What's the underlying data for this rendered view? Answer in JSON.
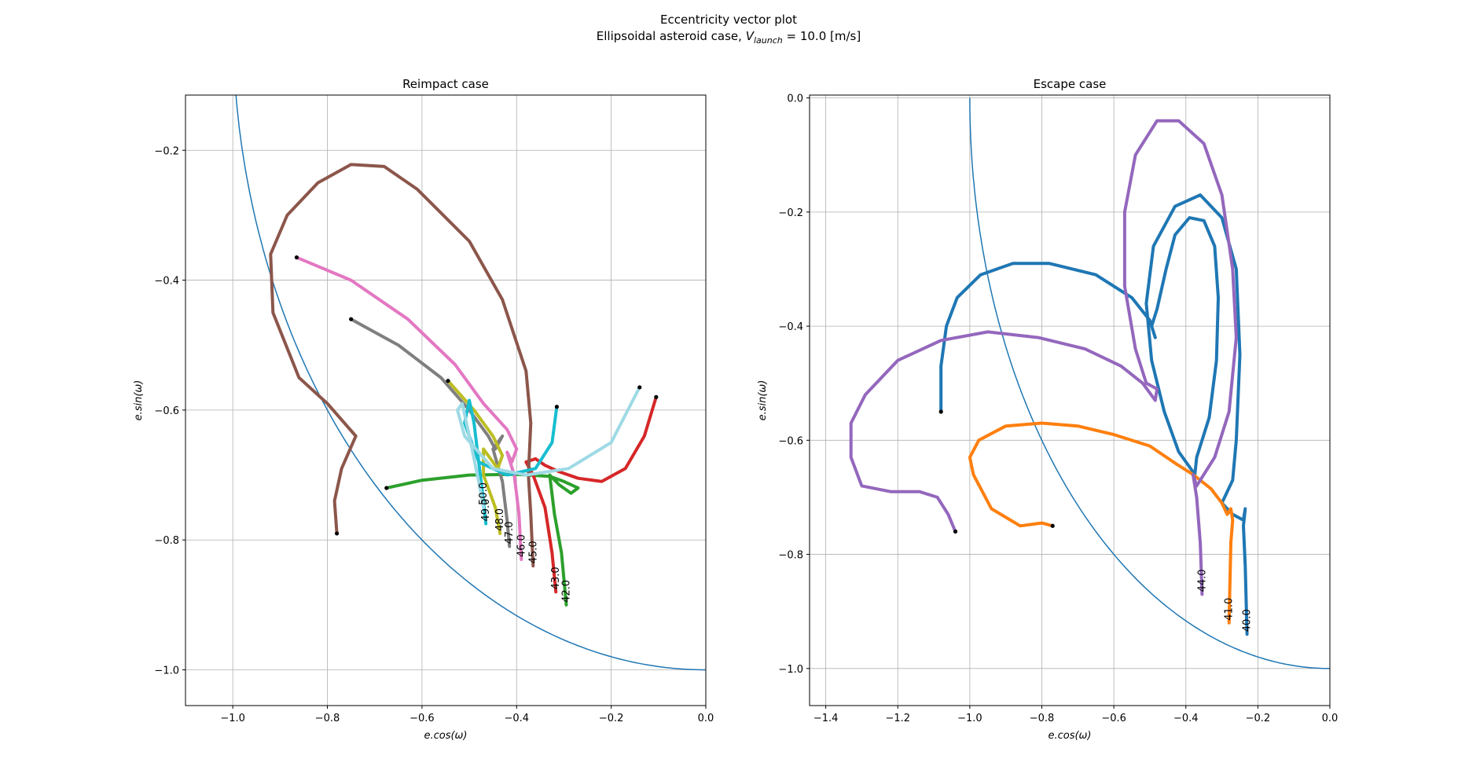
{
  "figure": {
    "title_line1": "Eccentricity vector plot",
    "title_line2_prefix": "Ellipsoidal asteroid case, ",
    "title_line2_var": "V",
    "title_line2_sub": "launch",
    "title_line2_suffix": " = 10.0 [m/s]"
  },
  "chart_data": [
    {
      "type": "line",
      "title": "Reimpact case",
      "xlabel": "e.cos(ω)",
      "ylabel": "e.sin(ω)",
      "xlim": [
        -1.1,
        0.0
      ],
      "ylim": [
        -1.055,
        -0.115
      ],
      "xticks": [
        -1.0,
        -0.8,
        -0.6,
        -0.4,
        -0.2,
        0.0
      ],
      "xtick_labels": [
        "−1.0",
        "−0.8",
        "−0.6",
        "−0.4",
        "−0.2",
        "0.0"
      ],
      "yticks": [
        -1.0,
        -0.8,
        -0.6,
        -0.4,
        -0.2
      ],
      "ytick_labels": [
        "−1.0",
        "−0.8",
        "−0.6",
        "−0.4",
        "−0.2"
      ],
      "grid": true,
      "reference_circle": {
        "radius": 1.0,
        "color": "#1f77b4"
      },
      "series": [
        {
          "label": "42.0",
          "color": "#2ca02c",
          "start": [
            -0.675,
            -0.72
          ],
          "points": [
            [
              -0.675,
              -0.72
            ],
            [
              -0.6,
              -0.708
            ],
            [
              -0.5,
              -0.7
            ],
            [
              -0.4,
              -0.699
            ],
            [
              -0.33,
              -0.702
            ],
            [
              -0.3,
              -0.71
            ],
            [
              -0.27,
              -0.72
            ],
            [
              -0.285,
              -0.728
            ],
            [
              -0.31,
              -0.715
            ],
            [
              -0.33,
              -0.7
            ],
            [
              -0.32,
              -0.76
            ],
            [
              -0.305,
              -0.82
            ],
            [
              -0.295,
              -0.9
            ]
          ]
        },
        {
          "label": "43.0",
          "color": "#d62728",
          "start": [
            -0.105,
            -0.58
          ],
          "points": [
            [
              -0.105,
              -0.58
            ],
            [
              -0.13,
              -0.64
            ],
            [
              -0.17,
              -0.69
            ],
            [
              -0.22,
              -0.71
            ],
            [
              -0.27,
              -0.705
            ],
            [
              -0.31,
              -0.695
            ],
            [
              -0.34,
              -0.685
            ],
            [
              -0.36,
              -0.675
            ],
            [
              -0.38,
              -0.68
            ],
            [
              -0.365,
              -0.7
            ],
            [
              -0.34,
              -0.75
            ],
            [
              -0.325,
              -0.82
            ],
            [
              -0.317,
              -0.88
            ]
          ]
        },
        {
          "label": "45.0",
          "color": "#8c564b",
          "start": [
            -0.78,
            -0.79
          ],
          "points": [
            [
              -0.78,
              -0.79
            ],
            [
              -0.785,
              -0.74
            ],
            [
              -0.77,
              -0.69
            ],
            [
              -0.74,
              -0.64
            ],
            [
              -0.8,
              -0.59
            ],
            [
              -0.86,
              -0.55
            ],
            [
              -0.915,
              -0.45
            ],
            [
              -0.92,
              -0.36
            ],
            [
              -0.885,
              -0.3
            ],
            [
              -0.82,
              -0.25
            ],
            [
              -0.75,
              -0.222
            ],
            [
              -0.68,
              -0.225
            ],
            [
              -0.61,
              -0.26
            ],
            [
              -0.5,
              -0.34
            ],
            [
              -0.43,
              -0.43
            ],
            [
              -0.38,
              -0.54
            ],
            [
              -0.37,
              -0.62
            ],
            [
              -0.375,
              -0.7
            ],
            [
              -0.37,
              -0.76
            ],
            [
              -0.365,
              -0.84
            ]
          ]
        },
        {
          "label": "46.0",
          "color": "#e377c2",
          "start": [
            -0.865,
            -0.365
          ],
          "points": [
            [
              -0.865,
              -0.365
            ],
            [
              -0.75,
              -0.4
            ],
            [
              -0.63,
              -0.46
            ],
            [
              -0.53,
              -0.53
            ],
            [
              -0.47,
              -0.59
            ],
            [
              -0.42,
              -0.63
            ],
            [
              -0.4,
              -0.66
            ],
            [
              -0.41,
              -0.68
            ],
            [
              -0.42,
              -0.665
            ],
            [
              -0.405,
              -0.7
            ],
            [
              -0.395,
              -0.76
            ],
            [
              -0.39,
              -0.83
            ]
          ]
        },
        {
          "label": "47.0",
          "color": "#7f7f7f",
          "start": [
            -0.75,
            -0.46
          ],
          "points": [
            [
              -0.75,
              -0.46
            ],
            [
              -0.65,
              -0.5
            ],
            [
              -0.56,
              -0.55
            ],
            [
              -0.5,
              -0.6
            ],
            [
              -0.46,
              -0.64
            ],
            [
              -0.445,
              -0.66
            ],
            [
              -0.43,
              -0.64
            ],
            [
              -0.45,
              -0.66
            ],
            [
              -0.43,
              -0.71
            ],
            [
              -0.42,
              -0.77
            ],
            [
              -0.415,
              -0.81
            ]
          ]
        },
        {
          "label": "48.0",
          "color": "#bcbd22",
          "start": [
            -0.545,
            -0.555
          ],
          "points": [
            [
              -0.545,
              -0.555
            ],
            [
              -0.49,
              -0.6
            ],
            [
              -0.45,
              -0.64
            ],
            [
              -0.43,
              -0.67
            ],
            [
              -0.44,
              -0.69
            ],
            [
              -0.47,
              -0.66
            ],
            [
              -0.47,
              -0.7
            ],
            [
              -0.445,
              -0.75
            ],
            [
              -0.435,
              -0.79
            ]
          ]
        },
        {
          "label": "49.0",
          "color": "#17becf",
          "start": [
            -0.315,
            -0.595
          ],
          "points": [
            [
              -0.315,
              -0.595
            ],
            [
              -0.325,
              -0.65
            ],
            [
              -0.36,
              -0.69
            ],
            [
              -0.42,
              -0.7
            ],
            [
              -0.48,
              -0.68
            ],
            [
              -0.51,
              -0.62
            ],
            [
              -0.5,
              -0.585
            ],
            [
              -0.49,
              -0.62
            ],
            [
              -0.48,
              -0.68
            ],
            [
              -0.47,
              -0.74
            ],
            [
              -0.465,
              -0.775
            ]
          ]
        },
        {
          "label": "50.0",
          "color": "#9edae5",
          "start": [
            -0.14,
            -0.565
          ],
          "points": [
            [
              -0.14,
              -0.565
            ],
            [
              -0.2,
              -0.65
            ],
            [
              -0.29,
              -0.69
            ],
            [
              -0.38,
              -0.7
            ],
            [
              -0.45,
              -0.69
            ],
            [
              -0.51,
              -0.64
            ],
            [
              -0.525,
              -0.6
            ],
            [
              -0.515,
              -0.59
            ],
            [
              -0.5,
              -0.64
            ],
            [
              -0.48,
              -0.71
            ],
            [
              -0.47,
              -0.75
            ]
          ]
        }
      ]
    },
    {
      "type": "line",
      "title": "Escape case",
      "xlabel": "e.cos(ω)",
      "ylabel": "e.sin(ω)",
      "xlim": [
        -1.445,
        0.0
      ],
      "ylim": [
        -1.065,
        0.005
      ],
      "xticks": [
        -1.4,
        -1.2,
        -1.0,
        -0.8,
        -0.6,
        -0.4,
        -0.2,
        0.0
      ],
      "xtick_labels": [
        "−1.4",
        "−1.2",
        "−1.0",
        "−0.8",
        "−0.6",
        "−0.4",
        "−0.2",
        "0.0"
      ],
      "yticks": [
        -1.0,
        -0.8,
        -0.6,
        -0.4,
        -0.2,
        0.0
      ],
      "ytick_labels": [
        "−1.0",
        "−0.8",
        "−0.6",
        "−0.4",
        "−0.2",
        "0.0"
      ],
      "grid": true,
      "reference_circle": {
        "radius": 1.0,
        "color": "#1f77b4"
      },
      "series": [
        {
          "label": "40.0",
          "color": "#1f77b4",
          "start": [
            -1.08,
            -0.55
          ],
          "points": [
            [
              -1.08,
              -0.55
            ],
            [
              -1.08,
              -0.47
            ],
            [
              -1.065,
              -0.4
            ],
            [
              -1.035,
              -0.35
            ],
            [
              -0.97,
              -0.31
            ],
            [
              -0.88,
              -0.29
            ],
            [
              -0.78,
              -0.29
            ],
            [
              -0.65,
              -0.31
            ],
            [
              -0.55,
              -0.35
            ],
            [
              -0.5,
              -0.39
            ],
            [
              -0.485,
              -0.42
            ],
            [
              -0.495,
              -0.4
            ],
            [
              -0.48,
              -0.37
            ],
            [
              -0.455,
              -0.3
            ],
            [
              -0.43,
              -0.24
            ],
            [
              -0.39,
              -0.21
            ],
            [
              -0.35,
              -0.215
            ],
            [
              -0.32,
              -0.26
            ],
            [
              -0.31,
              -0.35
            ],
            [
              -0.315,
              -0.46
            ],
            [
              -0.335,
              -0.56
            ],
            [
              -0.37,
              -0.63
            ],
            [
              -0.375,
              -0.66
            ],
            [
              -0.42,
              -0.62
            ],
            [
              -0.46,
              -0.55
            ],
            [
              -0.495,
              -0.46
            ],
            [
              -0.51,
              -0.36
            ],
            [
              -0.49,
              -0.26
            ],
            [
              -0.43,
              -0.19
            ],
            [
              -0.36,
              -0.17
            ],
            [
              -0.3,
              -0.21
            ],
            [
              -0.26,
              -0.3
            ],
            [
              -0.25,
              -0.45
            ],
            [
              -0.26,
              -0.6
            ],
            [
              -0.27,
              -0.67
            ],
            [
              -0.3,
              -0.71
            ],
            [
              -0.27,
              -0.73
            ],
            [
              -0.24,
              -0.74
            ],
            [
              -0.235,
              -0.72
            ],
            [
              -0.24,
              -0.75
            ],
            [
              -0.235,
              -0.82
            ],
            [
              -0.23,
              -0.94
            ]
          ]
        },
        {
          "label": "41.0",
          "color": "#ff7f0e",
          "start": [
            -0.77,
            -0.75
          ],
          "points": [
            [
              -0.77,
              -0.75
            ],
            [
              -0.8,
              -0.745
            ],
            [
              -0.86,
              -0.75
            ],
            [
              -0.94,
              -0.72
            ],
            [
              -0.99,
              -0.66
            ],
            [
              -1.0,
              -0.63
            ],
            [
              -0.975,
              -0.6
            ],
            [
              -0.9,
              -0.575
            ],
            [
              -0.8,
              -0.57
            ],
            [
              -0.7,
              -0.575
            ],
            [
              -0.6,
              -0.59
            ],
            [
              -0.5,
              -0.61
            ],
            [
              -0.43,
              -0.64
            ],
            [
              -0.38,
              -0.66
            ],
            [
              -0.33,
              -0.685
            ],
            [
              -0.3,
              -0.71
            ],
            [
              -0.285,
              -0.73
            ],
            [
              -0.275,
              -0.72
            ],
            [
              -0.27,
              -0.74
            ],
            [
              -0.275,
              -0.78
            ],
            [
              -0.28,
              -0.92
            ]
          ]
        },
        {
          "label": "44.0",
          "color": "#9467bd",
          "start": [
            -1.04,
            -0.76
          ],
          "points": [
            [
              -1.04,
              -0.76
            ],
            [
              -1.06,
              -0.73
            ],
            [
              -1.09,
              -0.7
            ],
            [
              -1.14,
              -0.69
            ],
            [
              -1.22,
              -0.69
            ],
            [
              -1.3,
              -0.68
            ],
            [
              -1.33,
              -0.63
            ],
            [
              -1.33,
              -0.57
            ],
            [
              -1.29,
              -0.52
            ],
            [
              -1.2,
              -0.46
            ],
            [
              -1.08,
              -0.425
            ],
            [
              -0.95,
              -0.41
            ],
            [
              -0.81,
              -0.42
            ],
            [
              -0.68,
              -0.44
            ],
            [
              -0.58,
              -0.47
            ],
            [
              -0.52,
              -0.5
            ],
            [
              -0.485,
              -0.53
            ],
            [
              -0.48,
              -0.51
            ],
            [
              -0.51,
              -0.5
            ],
            [
              -0.54,
              -0.44
            ],
            [
              -0.57,
              -0.33
            ],
            [
              -0.57,
              -0.2
            ],
            [
              -0.54,
              -0.1
            ],
            [
              -0.48,
              -0.04
            ],
            [
              -0.42,
              -0.04
            ],
            [
              -0.35,
              -0.08
            ],
            [
              -0.3,
              -0.17
            ],
            [
              -0.27,
              -0.3
            ],
            [
              -0.26,
              -0.42
            ],
            [
              -0.28,
              -0.55
            ],
            [
              -0.32,
              -0.63
            ],
            [
              -0.37,
              -0.68
            ],
            [
              -0.38,
              -0.66
            ],
            [
              -0.37,
              -0.7
            ],
            [
              -0.36,
              -0.78
            ],
            [
              -0.355,
              -0.87
            ]
          ]
        }
      ]
    }
  ]
}
